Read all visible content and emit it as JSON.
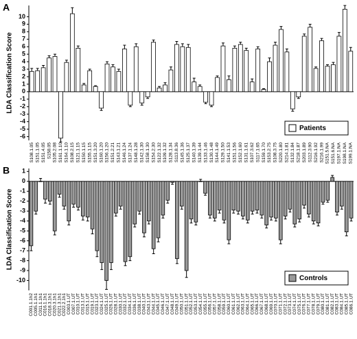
{
  "chart_data": [
    {
      "type": "bar",
      "panel_label": "A",
      "ylabel": "LDA Classification Score",
      "categories": [
        "S108.1.05",
        "S151.1.05",
        "S151.4.05",
        "S158.05",
        "S105.2.08",
        "S161.1.10",
        "S164.1.10",
        "S108.2.15",
        "S121.1.15",
        "S150.1.15",
        "S155.1.15",
        "S151.3.20",
        "S160.1.20",
        "S156.1.20",
        "S151.2.21",
        "S143.1.21",
        "S146.1.24",
        "S137.1.24",
        "S148.1.28",
        "S142.1.30",
        "S158.1.30",
        "S154.2.30",
        "S122.1.32",
        "S109.1.32",
        "S128.1.34",
        "S113.8.36",
        "S145.1.36",
        "S125.1.37",
        "S140.1.39",
        "S139.1.44",
        "S133.1.46",
        "S130.1.48",
        "S144.1.49",
        "S129.1.50",
        "S141.1.53",
        "S151.1.56",
        "S152.1.60",
        "S131.1.61",
        "S107.3.62",
        "S117.1.65",
        "S159.1.70",
        "S153.2.75",
        "S108.3.75",
        "S220.1.80",
        "S214.1.81",
        "S132.1.84",
        "S218.1.87",
        "S203.1.89",
        "S112.3.90",
        "S216.1.92",
        "S216.1.99",
        "S151.5.NA",
        "S151.6.NA",
        "S197.1.NA",
        "S198.1.NA",
        "S199.1.NA"
      ],
      "series": [
        {
          "name": "Patients",
          "color": "#ffffff",
          "values": [
            2.7,
            2.8,
            3.2,
            4.5,
            4.7,
            -6.2,
            3.9,
            10.4,
            5.8,
            0.9,
            2.8,
            0.7,
            -2.2,
            3.7,
            3.3,
            2.7,
            5.7,
            -1.8,
            6.0,
            -1.5,
            -0.7,
            6.6,
            0.5,
            0.9,
            2.9,
            6.3,
            6.0,
            5.9,
            1.3,
            0.7,
            -1.4,
            -1.8,
            1.9,
            6.1,
            1.6,
            5.8,
            6.3,
            5.5,
            1.3,
            5.7,
            0.3,
            4.0,
            6.2,
            8.3,
            5.3,
            -2.3,
            -0.7,
            7.4,
            8.6,
            3.1,
            6.8,
            3.4,
            3.6,
            7.4,
            11.0,
            5.4
          ],
          "errors": [
            0.4,
            0.3,
            0.3,
            0.3,
            0.3,
            0.5,
            0.3,
            0.8,
            0.3,
            0.2,
            0.2,
            0.1,
            0.3,
            0.3,
            0.3,
            0.3,
            0.5,
            0.2,
            0.4,
            0.3,
            0.2,
            0.3,
            0.2,
            0.3,
            0.4,
            0.4,
            0.4,
            0.4,
            0.5,
            0.2,
            0.2,
            0.2,
            0.2,
            0.4,
            0.5,
            0.3,
            0.3,
            0.3,
            0.4,
            0.3,
            0.1,
            0.5,
            0.4,
            0.4,
            0.4,
            0.3,
            0.2,
            0.3,
            0.4,
            0.2,
            0.3,
            0.2,
            0.3,
            0.5,
            0.5,
            0.5
          ]
        }
      ],
      "ylim": [
        -6.5,
        11.5
      ],
      "yticks": [
        -6,
        -5,
        -4,
        -3,
        -2,
        -1,
        0,
        1,
        2,
        3,
        4,
        5,
        6,
        7,
        8,
        9,
        10
      ],
      "legend": "lower right"
    },
    {
      "type": "bar",
      "panel_label": "B",
      "ylabel": "LDA Classification Score",
      "categories": [
        "C001.1.1h2",
        "C005.1.1h1",
        "C011.1.1h1",
        "C016.1.1h1",
        "C018.3.1h1",
        "C020.3.1h1",
        "C021.3.1h1",
        "C022.2.1h1",
        "C003.1.UT",
        "C007.1.UT",
        "C010.1.UT",
        "C013.1.UT",
        "C015.1.UT",
        "C019.1.UT",
        "C023.1.UT",
        "C024.1.UT",
        "C025.1.UT",
        "C026.1.UT",
        "C028.1.UT",
        "C030.1.UT",
        "C032.1.UT",
        "C034.1.UT",
        "C036.1.UT",
        "C038.1.UT",
        "C040.1.UT",
        "C043.1.UT",
        "C044.1.UT",
        "C045.1.UT",
        "C046.1.UT",
        "C047.1.UT",
        "C048.1.UT",
        "C049.1.UT",
        "C050.1.UT",
        "C051.1.UT",
        "C052.1.UT",
        "C053.1.UT",
        "C054.1.UT",
        "C055.1.UT",
        "C056.1.UT",
        "C057.1.UT",
        "C058.1.UT",
        "C059.1.UT",
        "C060.1.UT",
        "C061.1.UT",
        "C062.1.UT",
        "C063.1.UT",
        "C064.1.UT",
        "C065.1.UT",
        "C066.1.UT",
        "C067.1.UT",
        "C068.1.UT",
        "C069.1.UT",
        "C070.1.UT",
        "C071.1.UT",
        "C072.1.UT",
        "C073.1.UT",
        "C074.1.UT",
        "C075.1.UT",
        "C076.1.UT",
        "C077.1.UT",
        "C078.1.UT",
        "C079.1.UT",
        "C080.1.UT",
        "C081.1.UT",
        "C082.1.UT",
        "C083.1.UT",
        "C084.1.UT",
        "C085.1.UT",
        "C086.1.UT"
      ],
      "series": [
        {
          "name": "Controls",
          "color": "#999999",
          "values": [
            -6.5,
            -3.0,
            0.0,
            -1.8,
            -2.0,
            -5.0,
            -1.3,
            -2.5,
            -4.0,
            -2.3,
            -2.6,
            -3.5,
            -3.6,
            -4.8,
            -7.0,
            -8.2,
            -10.0,
            -8.2,
            -3.2,
            -2.5,
            -8.1,
            -7.6,
            -4.3,
            -3.0,
            -5.2,
            -4.0,
            -6.8,
            -5.7,
            -3.4,
            -1.9,
            -0.1,
            -7.8,
            -2.5,
            -9.0,
            -3.8,
            -4.1,
            0.0,
            -1.2,
            -3.4,
            -3.7,
            -2.9,
            -3.9,
            -5.9,
            -2.9,
            -3.0,
            -3.5,
            -3.9,
            -3.0,
            -2.9,
            -3.4,
            -4.4,
            -3.6,
            -3.7,
            -5.9,
            -3.5,
            -2.8,
            -4.3,
            -3.8,
            -2.4,
            -3.3,
            -4.0,
            -4.2,
            -2.1,
            -1.9,
            0.4,
            -3.1,
            -2.5,
            -5.1,
            -3.7
          ],
          "errors": [
            0.5,
            0.3,
            0.3,
            0.4,
            0.3,
            0.4,
            0.3,
            0.3,
            0.4,
            0.3,
            0.3,
            0.4,
            0.4,
            0.5,
            0.6,
            0.7,
            0.9,
            0.7,
            0.3,
            0.3,
            0.4,
            0.4,
            0.3,
            0.3,
            0.4,
            0.3,
            0.5,
            0.4,
            0.3,
            0.3,
            0.2,
            0.5,
            0.3,
            0.7,
            0.4,
            0.3,
            0.2,
            0.2,
            0.3,
            0.3,
            0.3,
            0.3,
            0.4,
            0.3,
            0.3,
            0.3,
            0.3,
            0.3,
            0.3,
            0.3,
            0.3,
            0.3,
            0.3,
            0.4,
            0.3,
            0.3,
            0.3,
            0.3,
            0.3,
            0.3,
            0.3,
            0.3,
            0.2,
            0.2,
            0.2,
            0.3,
            0.3,
            0.4,
            0.3
          ]
        }
      ],
      "ylim": [
        -11,
        1.3
      ],
      "yticks": [
        -10,
        -9,
        -8,
        -7,
        -6,
        -5,
        -4,
        -3,
        -2,
        -1,
        0,
        1
      ],
      "legend": "lower right"
    }
  ]
}
